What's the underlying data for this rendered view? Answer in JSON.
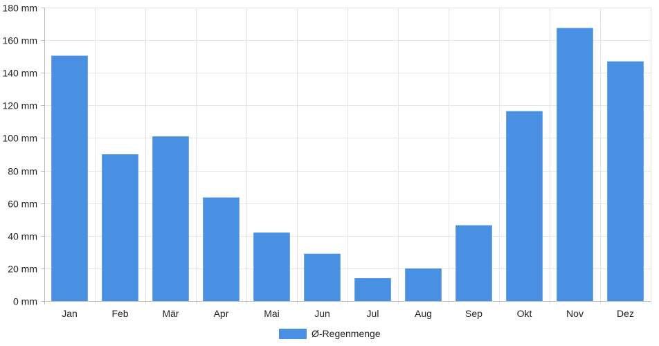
{
  "chart_data": {
    "type": "bar",
    "categories": [
      "Jan",
      "Feb",
      "Mär",
      "Apr",
      "Mai",
      "Jun",
      "Jul",
      "Aug",
      "Sep",
      "Okt",
      "Nov",
      "Dez"
    ],
    "series": [
      {
        "name": "Ø-Regenmenge",
        "values": [
          150.5,
          90,
          101,
          63.5,
          42,
          29,
          14,
          20,
          46.5,
          116.5,
          167.5,
          147
        ],
        "color": "#4a90e2"
      }
    ],
    "ylim": [
      0,
      180
    ],
    "y_ticks": [
      0,
      20,
      40,
      60,
      80,
      100,
      120,
      140,
      160,
      180
    ],
    "y_tick_labels": [
      "0 mm",
      "20 mm",
      "40 mm",
      "60 mm",
      "80 mm",
      "100 mm",
      "120 mm",
      "140 mm",
      "160 mm",
      "180 mm"
    ],
    "grid": true,
    "legend_position": "bottom-center",
    "title": "",
    "xlabel": "",
    "ylabel": ""
  }
}
